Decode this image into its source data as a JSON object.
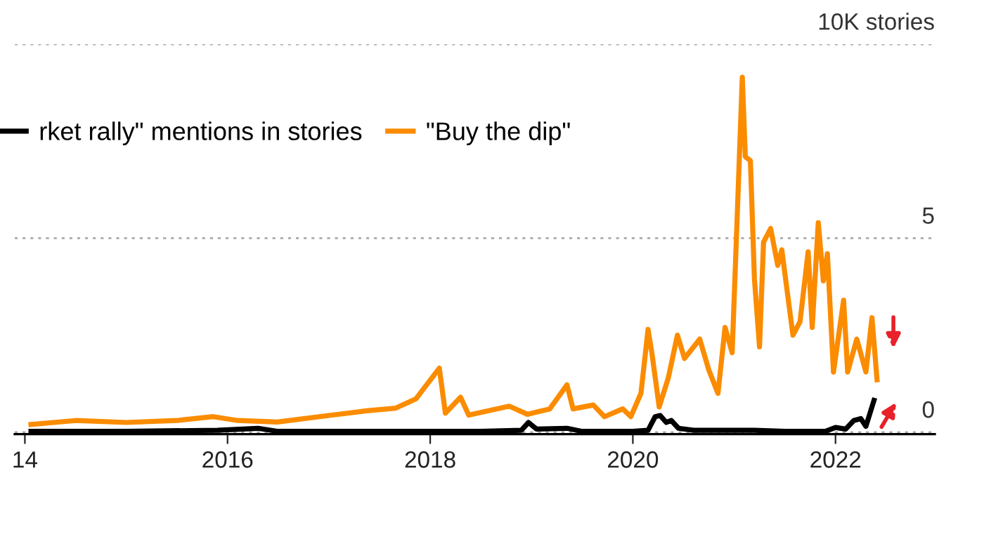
{
  "chart_data": {
    "type": "line",
    "series": [
      {
        "name": "rket rally\" mentions in stories",
        "color": "#000000",
        "x": [
          2014.06,
          2015,
          2015.9,
          2016.3,
          2016.5,
          2017.5,
          2018.5,
          2018.9,
          2018.97,
          2019.05,
          2019.35,
          2019.5,
          2020.0,
          2020.15,
          2020.22,
          2020.27,
          2020.33,
          2020.38,
          2020.45,
          2020.6,
          2021.2,
          2021.5,
          2021.9,
          2022.0,
          2022.1,
          2022.18,
          2022.25,
          2022.3,
          2022.38
        ],
        "values": [
          0.02,
          0.02,
          0.05,
          0.1,
          0.02,
          0.02,
          0.02,
          0.05,
          0.25,
          0.08,
          0.1,
          0.02,
          0.02,
          0.05,
          0.4,
          0.43,
          0.25,
          0.3,
          0.1,
          0.05,
          0.05,
          0.02,
          0.02,
          0.12,
          0.08,
          0.3,
          0.35,
          0.15,
          0.82
        ]
      },
      {
        "name": "\"Buy the dip\"",
        "color": "#fb8c00",
        "x": [
          2014.06,
          2014.5,
          2015.0,
          2015.5,
          2015.86,
          2016.1,
          2016.49,
          2017.03,
          2017.37,
          2017.66,
          2017.86,
          2018.09,
          2018.15,
          2018.3,
          2018.38,
          2018.78,
          2018.96,
          2019.18,
          2019.35,
          2019.41,
          2019.61,
          2019.72,
          2019.9,
          2019.98,
          2020.08,
          2020.15,
          2020.19,
          2020.26,
          2020.35,
          2020.44,
          2020.51,
          2020.66,
          2020.75,
          2020.84,
          2020.91,
          2020.98,
          2021.02,
          2021.08,
          2021.11,
          2021.16,
          2021.2,
          2021.25,
          2021.29,
          2021.36,
          2021.43,
          2021.47,
          2021.58,
          2021.65,
          2021.73,
          2021.77,
          2021.83,
          2021.88,
          2021.92,
          2021.98,
          2022.08,
          2022.12,
          2022.21,
          2022.3,
          2022.36,
          2022.41
        ],
        "values": [
          0.2,
          0.3,
          0.25,
          0.3,
          0.4,
          0.3,
          0.26,
          0.44,
          0.55,
          0.62,
          0.86,
          1.65,
          0.49,
          0.9,
          0.44,
          0.67,
          0.46,
          0.6,
          1.22,
          0.6,
          0.7,
          0.4,
          0.6,
          0.4,
          1.0,
          2.65,
          2.0,
          0.65,
          1.4,
          2.5,
          1.9,
          2.4,
          1.6,
          1.0,
          2.7,
          2.05,
          4.85,
          9.15,
          7.1,
          7.0,
          3.95,
          2.2,
          4.9,
          5.25,
          4.3,
          4.7,
          2.5,
          2.85,
          4.65,
          2.7,
          5.4,
          3.9,
          4.6,
          1.55,
          3.4,
          1.55,
          2.4,
          1.55,
          2.95,
          1.35
        ]
      }
    ],
    "xlim": [
      2013.9,
      2022.98
    ],
    "xticks": [
      {
        "value": 2014,
        "label": "14"
      },
      2016,
      2018,
      2020,
      2022
    ],
    "ylim": [
      -0.05,
      10
    ],
    "yticks": [
      0,
      5,
      {
        "value": 10,
        "label": "10K stories"
      }
    ],
    "grid": "y",
    "legend": "top left",
    "marker": "none",
    "line_style": "solid"
  }
}
